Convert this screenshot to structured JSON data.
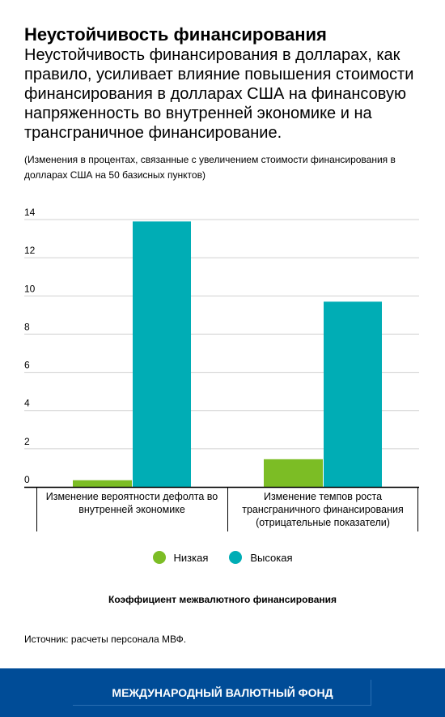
{
  "chart_data": {
    "type": "bar",
    "title": "Неустойчивость финансирования",
    "subtitle": "Неустойчивость финансирования в долларах, как правило, усиливает влияние повышения стоимости финансирования в долларах США на финансовую напряженность во внутренней экономике и на трансграничное финансирование.",
    "note": "(Изменения в процентах, связанные с увеличением стоимости финансирования в долларах США на 50 базисных пунктов)",
    "categories": [
      "Изменение вероятности дефолта во внутренней экономике",
      "Изменение темпов роста трансграничного финансирования (отрицательные показатели)"
    ],
    "series": [
      {
        "name": "Низкая",
        "color": "#7cbd25",
        "values": [
          0.35,
          1.45
        ]
      },
      {
        "name": "Высокая",
        "color": "#00adb5",
        "values": [
          13.9,
          9.7
        ]
      }
    ],
    "ylim": [
      0,
      14
    ],
    "yticks": [
      0,
      2,
      4,
      6,
      8,
      10,
      12,
      14
    ],
    "legend_title": "Коэффициент межвалютного финансирования",
    "legend_position": "bottom",
    "grid": true
  },
  "source": "Источник: расчеты персонала МВФ.",
  "footer": "МЕЖДУНАРОДНЫЙ ВАЛЮТНЫЙ ФОНД"
}
